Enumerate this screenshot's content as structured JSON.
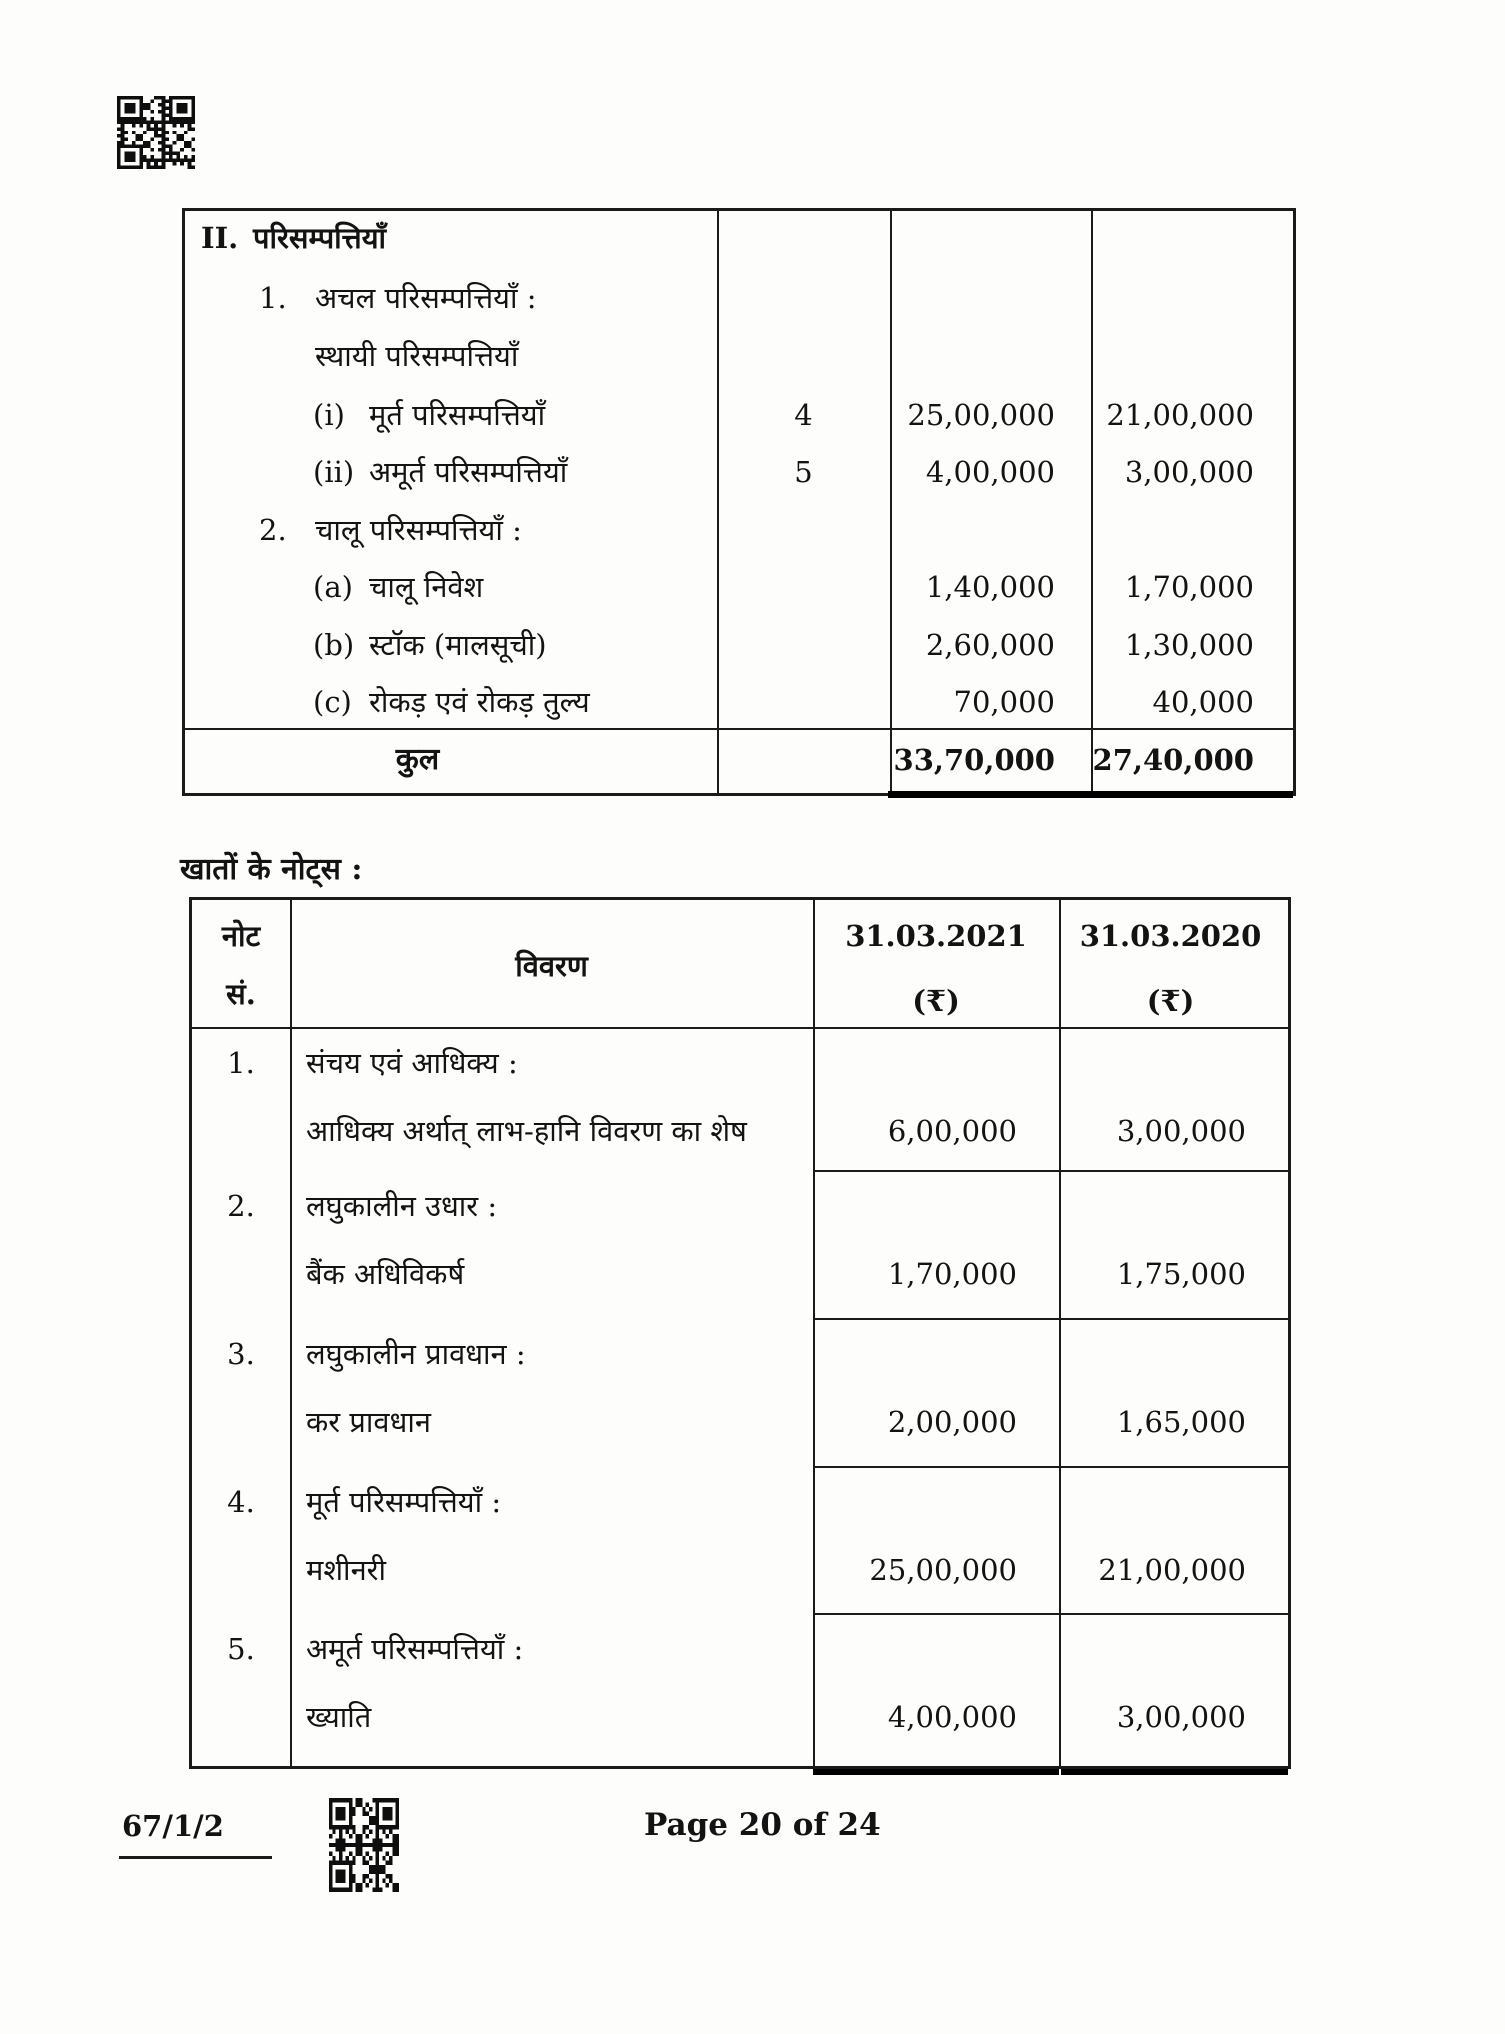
{
  "document": {
    "footer": {
      "paper_code": "67/1/2",
      "page_label": "Page 20 of 24"
    },
    "icons": {
      "qr_top": "qr-code",
      "qr_footer": "qr-code"
    }
  },
  "assets_table": {
    "section": {
      "num": "II.",
      "title": "परिसम्पत्तियाँ"
    },
    "rows": [
      {
        "num": "1.",
        "level": 1,
        "label": "अचल परिसम्पत्तियाँ :",
        "note": "",
        "amt2021": "",
        "amt2020": ""
      },
      {
        "num": "",
        "level": 1,
        "label": "स्थायी परिसम्पत्तियाँ",
        "note": "",
        "amt2021": "",
        "amt2020": ""
      },
      {
        "num": "(i)",
        "level": 2,
        "label": "मूर्त परिसम्पत्तियाँ",
        "note": "4",
        "amt2021": "25,00,000",
        "amt2020": "21,00,000"
      },
      {
        "num": "(ii)",
        "level": 2,
        "label": "अमूर्त परिसम्पत्तियाँ",
        "note": "5",
        "amt2021": "4,00,000",
        "amt2020": "3,00,000"
      },
      {
        "num": "2.",
        "level": 1,
        "label": "चालू परिसम्पत्तियाँ :",
        "note": "",
        "amt2021": "",
        "amt2020": ""
      },
      {
        "num": "(a)",
        "level": 2,
        "label": "चालू निवेश",
        "note": "",
        "amt2021": "1,40,000",
        "amt2020": "1,70,000"
      },
      {
        "num": "(b)",
        "level": 2,
        "label": "स्टॉक (मालसूची)",
        "note": "",
        "amt2021": "2,60,000",
        "amt2020": "1,30,000"
      },
      {
        "num": "(c)",
        "level": 2,
        "label": "रोकड़ एवं रोकड़ तुल्य",
        "note": "",
        "amt2021": "70,000",
        "amt2020": "40,000"
      }
    ],
    "total": {
      "label": "कुल",
      "amt2021": "33,70,000",
      "amt2020": "27,40,000"
    }
  },
  "notes_section": {
    "heading": "खातों के नोट्स :",
    "header": {
      "note_line1": "नोट",
      "note_line2": "सं.",
      "particulars": "विवरण",
      "y2021": "31.03.2021",
      "y2020": "31.03.2020",
      "currency": "(₹)"
    },
    "rows": [
      {
        "num": "1.",
        "line1": "संचय एवं आधिक्य :",
        "line2": "आधिक्य अर्थात् लाभ-हानि विवरण का शेष",
        "amt2021": "6,00,000",
        "amt2020": "3,00,000"
      },
      {
        "num": "2.",
        "line1": "लघुकालीन उधार :",
        "line2": "बैंक अधिविकर्ष",
        "amt2021": "1,70,000",
        "amt2020": "1,75,000"
      },
      {
        "num": "3.",
        "line1": "लघुकालीन प्रावधान :",
        "line2": "कर प्रावधान",
        "amt2021": "2,00,000",
        "amt2020": "1,65,000"
      },
      {
        "num": "4.",
        "line1": "मूर्त परिसम्पत्तियाँ :",
        "line2": "मशीनरी",
        "amt2021": "25,00,000",
        "amt2020": "21,00,000"
      },
      {
        "num": "5.",
        "line1": "अमूर्त परिसम्पत्तियाँ :",
        "line2": "ख्याति",
        "amt2021": "4,00,000",
        "amt2020": "3,00,000"
      }
    ]
  }
}
